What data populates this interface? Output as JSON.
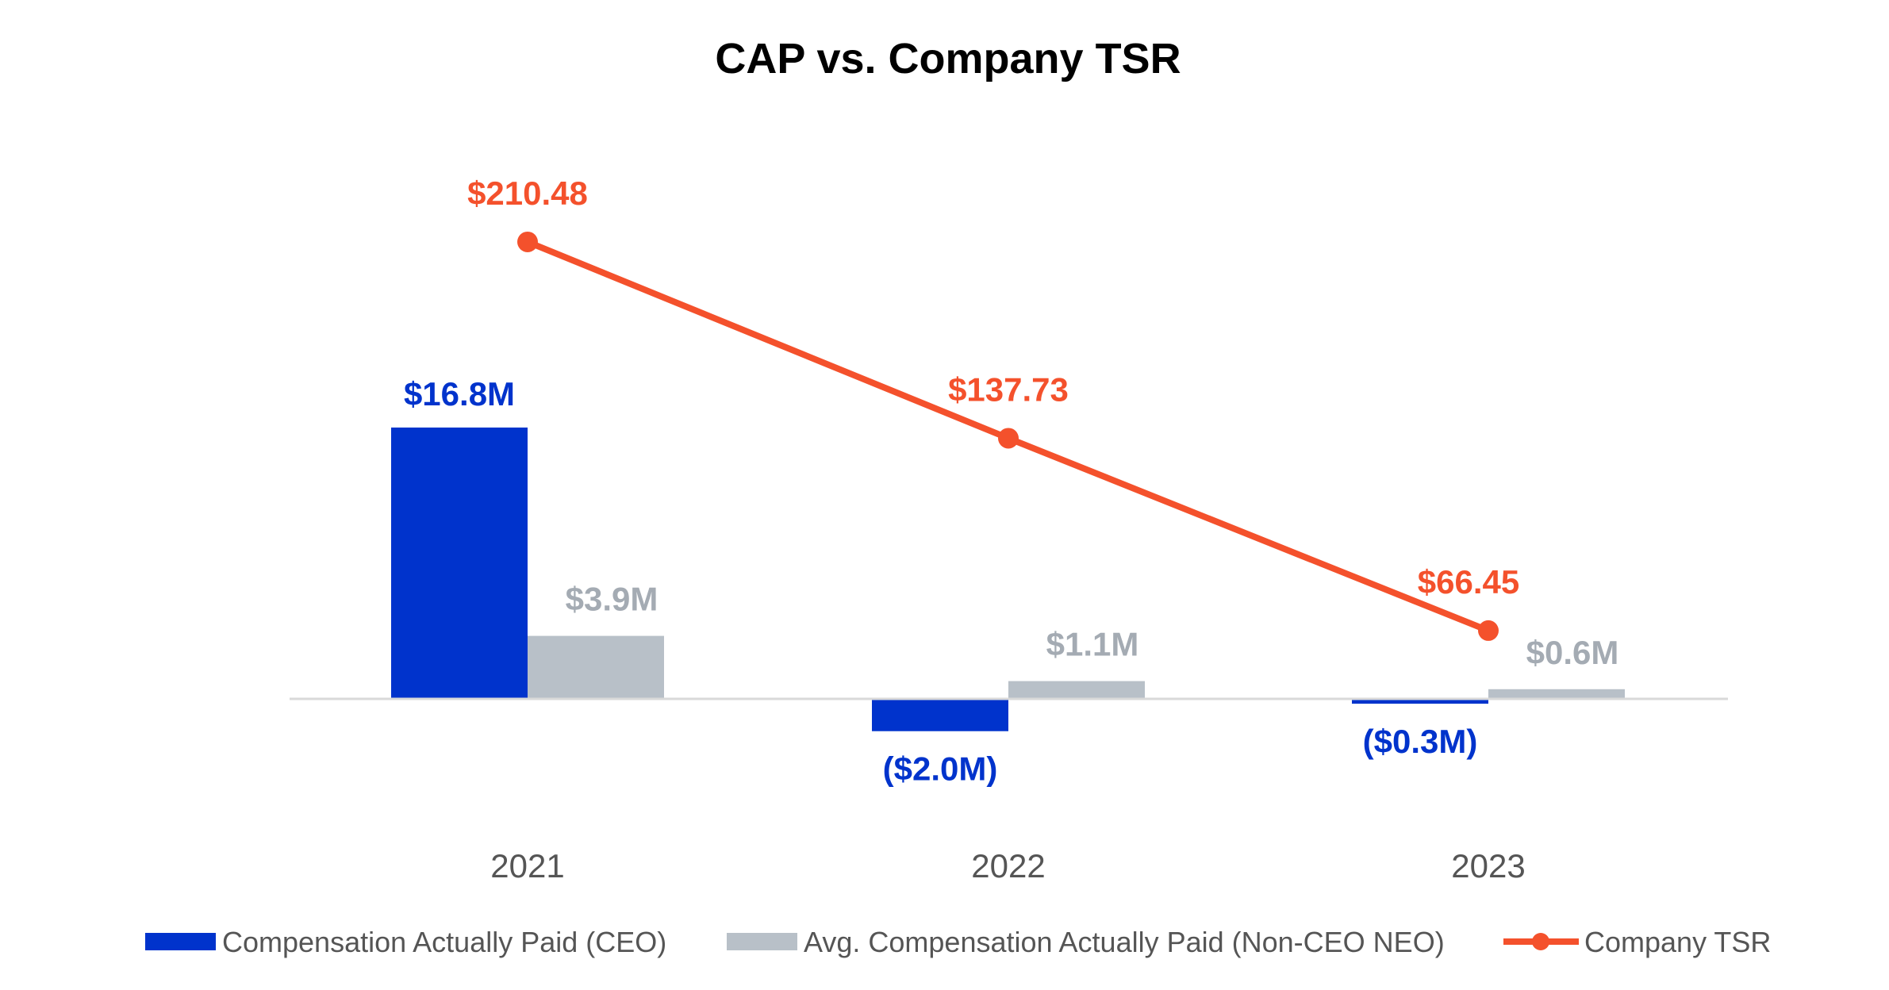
{
  "chart_data": {
    "type": "bar+line",
    "title": "CAP vs. Company TSR",
    "categories": [
      "2021",
      "2022",
      "2023"
    ],
    "series": [
      {
        "name": "Compensation Actually Paid (CEO)",
        "type": "bar",
        "unit": "$M",
        "values": [
          16.8,
          -2.0,
          -0.3
        ],
        "labels": [
          "$16.8M",
          "($2.0M)",
          "($0.3M)"
        ],
        "color": "#0033CC"
      },
      {
        "name": "Avg. Compensation Actually Paid (Non-CEO NEO)",
        "type": "bar",
        "unit": "$M",
        "values": [
          3.9,
          1.1,
          0.6
        ],
        "labels": [
          "$3.9M",
          "$1.1M",
          "$0.6M"
        ],
        "color": "#B8C0C8"
      },
      {
        "name": "Company TSR",
        "type": "line",
        "unit": "$",
        "values": [
          210.48,
          137.73,
          66.45
        ],
        "labels": [
          "$210.48",
          "$137.73",
          "$66.45"
        ],
        "color": "#F4512C"
      }
    ],
    "xlabel": "",
    "ylabel": "",
    "grid": false,
    "legend": "bottom",
    "label_colors": {
      "ceo": "#0033CC",
      "neo": "#A4ABB3",
      "tsr": "#F4512C"
    }
  }
}
